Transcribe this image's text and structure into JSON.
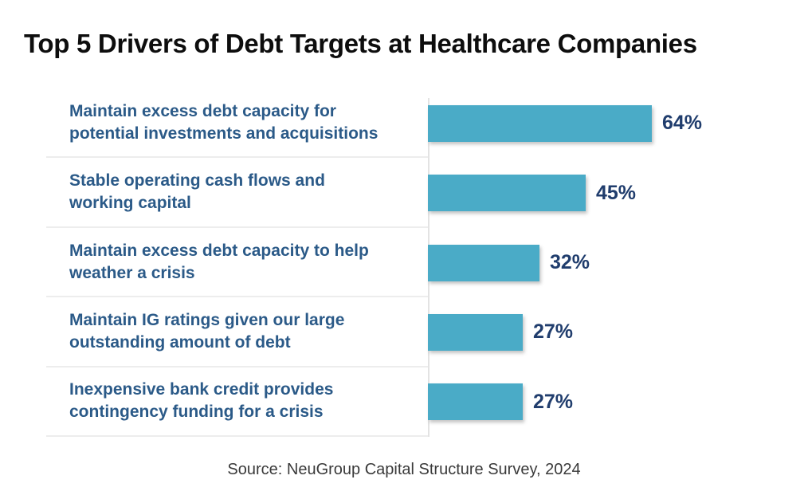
{
  "title": "Top 5 Drivers of Debt Targets at Healthcare Companies",
  "source": "Source: NeuGroup Capital Structure Survey, 2024",
  "colors": {
    "background": "#ffffff",
    "title_text": "#0d0d0d",
    "label_text": "#2b5a88",
    "value_text": "#203d6d",
    "bar": "#4aabc7",
    "divider": "#ededed",
    "axis_line": "#e3e3e3",
    "source_text": "#3a3a3a"
  },
  "chart_data": {
    "type": "bar",
    "orientation": "horizontal",
    "title": "Top 5 Drivers of Debt Targets at Healthcare Companies",
    "categories": [
      "Maintain excess debt capacity for\npotential investments and acquisitions",
      "Stable operating cash flows and\nworking capital",
      "Maintain excess debt capacity to help\nweather a crisis",
      "Maintain IG ratings given our large\noutstanding amount of debt",
      "Inexpensive bank credit provides\ncontingency funding for a crisis"
    ],
    "values": [
      64,
      45,
      32,
      27,
      27
    ],
    "value_suffix": "%",
    "xlim": [
      0,
      100
    ],
    "grid": false,
    "legend": false,
    "value_label_position": "outside-end",
    "source": "Source: NeuGroup Capital Structure Survey, 2024"
  }
}
